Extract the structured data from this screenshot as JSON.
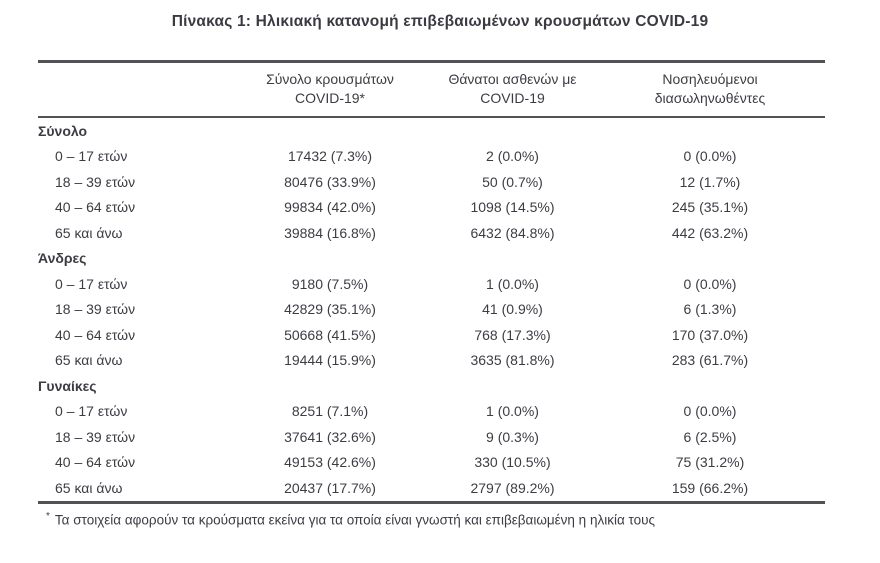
{
  "title": "Πίνακας 1: Ηλικιακή κατανομή επιβεβαιωμένων κρουσμάτων COVID-19",
  "text_color": "#3c3c44",
  "rule_color": "#515156",
  "table": {
    "columns": [
      {
        "line1": "Σύνολο κρουσμάτων",
        "line2": "COVID-19*"
      },
      {
        "line1": "Θάνατοι ασθενών με",
        "line2": "COVID-19"
      },
      {
        "line1": "Νοσηλευόμενοι",
        "line2": "διασωληνωθέντες"
      }
    ],
    "sections": [
      {
        "label": "Σύνολο",
        "rows": [
          {
            "age": "0 – 17 ετών",
            "values": [
              "17432 (7.3%)",
              "2 (0.0%)",
              "0 (0.0%)"
            ]
          },
          {
            "age": "18 – 39 ετών",
            "values": [
              "80476 (33.9%)",
              "50 (0.7%)",
              "12 (1.7%)"
            ]
          },
          {
            "age": "40 – 64 ετών",
            "values": [
              "99834 (42.0%)",
              "1098 (14.5%)",
              "245 (35.1%)"
            ]
          },
          {
            "age": "65 και άνω",
            "values": [
              "39884 (16.8%)",
              "6432 (84.8%)",
              "442 (63.2%)"
            ]
          }
        ]
      },
      {
        "label": "Άνδρες",
        "rows": [
          {
            "age": "0 – 17 ετών",
            "values": [
              "9180 (7.5%)",
              "1 (0.0%)",
              "0 (0.0%)"
            ]
          },
          {
            "age": "18 – 39 ετών",
            "values": [
              "42829 (35.1%)",
              "41 (0.9%)",
              "6 (1.3%)"
            ]
          },
          {
            "age": "40 – 64 ετών",
            "values": [
              "50668 (41.5%)",
              "768 (17.3%)",
              "170 (37.0%)"
            ]
          },
          {
            "age": "65 και άνω",
            "values": [
              "19444 (15.9%)",
              "3635 (81.8%)",
              "283 (61.7%)"
            ]
          }
        ]
      },
      {
        "label": "Γυναίκες",
        "rows": [
          {
            "age": "0 – 17 ετών",
            "values": [
              "8251 (7.1%)",
              "1 (0.0%)",
              "0 (0.0%)"
            ]
          },
          {
            "age": "18 – 39 ετών",
            "values": [
              "37641 (32.6%)",
              "9 (0.3%)",
              "6 (2.5%)"
            ]
          },
          {
            "age": "40 – 64 ετών",
            "values": [
              "49153 (42.6%)",
              "330 (10.5%)",
              "75 (31.2%)"
            ]
          },
          {
            "age": "65 και άνω",
            "values": [
              "20437 (17.7%)",
              "2797 (89.2%)",
              "159 (66.2%)"
            ]
          }
        ]
      }
    ]
  },
  "footnote": {
    "marker": "*",
    "text": "Τα στοιχεία αφορούν τα κρούσματα εκείνα για τα οποία είναι γνωστή και επιβεβαιωμένη η ηλικία τους"
  }
}
